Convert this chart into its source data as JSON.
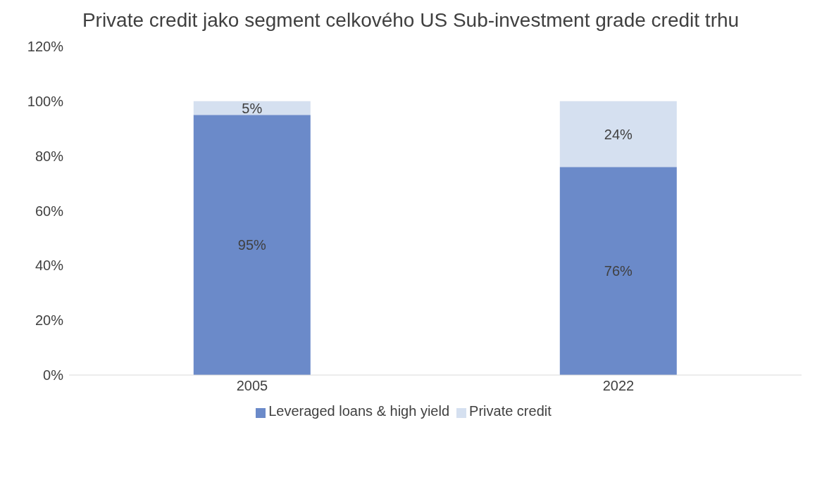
{
  "chart_data": {
    "type": "bar",
    "title": "Private credit jako segment celkového US Sub-investment grade credit trhu",
    "categories": [
      "2005",
      "2022"
    ],
    "stacked": true,
    "series": [
      {
        "name": "Leveraged loans & high yield",
        "color": "#6b8ac9",
        "values": [
          95,
          76
        ],
        "value_labels": [
          "95%",
          "76%"
        ]
      },
      {
        "name": "Private credit",
        "color": "#d5e0f0",
        "values": [
          5,
          24
        ],
        "value_labels": [
          "5%",
          "24%"
        ]
      }
    ],
    "ylim": [
      0,
      120
    ],
    "yticks": [
      {
        "value": 0,
        "label": "0%"
      },
      {
        "value": 20,
        "label": "20%"
      },
      {
        "value": 40,
        "label": "40%"
      },
      {
        "value": 60,
        "label": "60%"
      },
      {
        "value": 80,
        "label": "80%"
      },
      {
        "value": 100,
        "label": "100%"
      },
      {
        "value": 120,
        "label": "120%"
      }
    ],
    "legend": "bottom"
  }
}
